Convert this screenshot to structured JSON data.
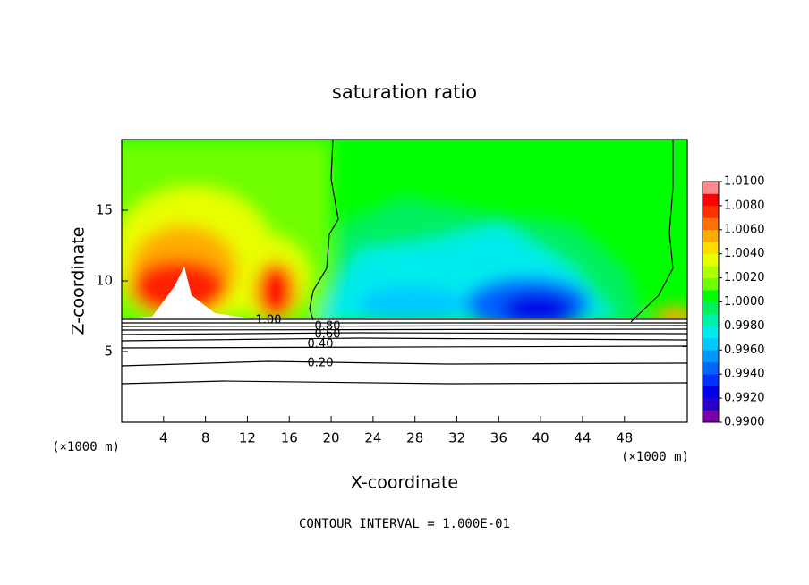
{
  "chart_data": {
    "type": "contour",
    "title": "saturation ratio",
    "x_label": "X-coordinate",
    "y_label": "Z-coordinate",
    "x_unit_label": "(×1000 m)",
    "footnote": "CONTOUR INTERVAL = 1.000E-01",
    "contour_labels": [
      "1.00",
      "0.80",
      "0.60",
      "0.40",
      "0.20"
    ],
    "xlim": [
      0,
      54
    ],
    "xticks": [
      4,
      8,
      12,
      16,
      20,
      24,
      28,
      32,
      36,
      40,
      44,
      48
    ],
    "ylim": [
      0,
      20
    ],
    "yticks": [
      5,
      10,
      15
    ],
    "clim": [
      0.99,
      1.01
    ],
    "colors": [
      "#7a00a8",
      "#2a00c8",
      "#0000e6",
      "#0030ff",
      "#0064ff",
      "#0096ff",
      "#00c8ff",
      "#00ecec",
      "#00f0a8",
      "#00f060",
      "#00ff00",
      "#70ff00",
      "#b0ff00",
      "#e8ff00",
      "#ffdc00",
      "#ffac00",
      "#ff7000",
      "#ff3000",
      "#ff0000",
      "#ff8a8a"
    ],
    "cticks": [
      {
        "value": 0.99,
        "label": "0.9900"
      },
      {
        "value": 0.992,
        "label": "0.9920"
      },
      {
        "value": 0.994,
        "label": "0.9940"
      },
      {
        "value": 0.996,
        "label": "0.9960"
      },
      {
        "value": 0.998,
        "label": "0.9980"
      },
      {
        "value": 1.0,
        "label": "1.0000"
      },
      {
        "value": 1.002,
        "label": "1.0020"
      },
      {
        "value": 1.004,
        "label": "1.0040"
      },
      {
        "value": 1.006,
        "label": "1.0060"
      },
      {
        "value": 1.008,
        "label": "1.0080"
      },
      {
        "value": 1.01,
        "label": "1.0100"
      }
    ]
  }
}
